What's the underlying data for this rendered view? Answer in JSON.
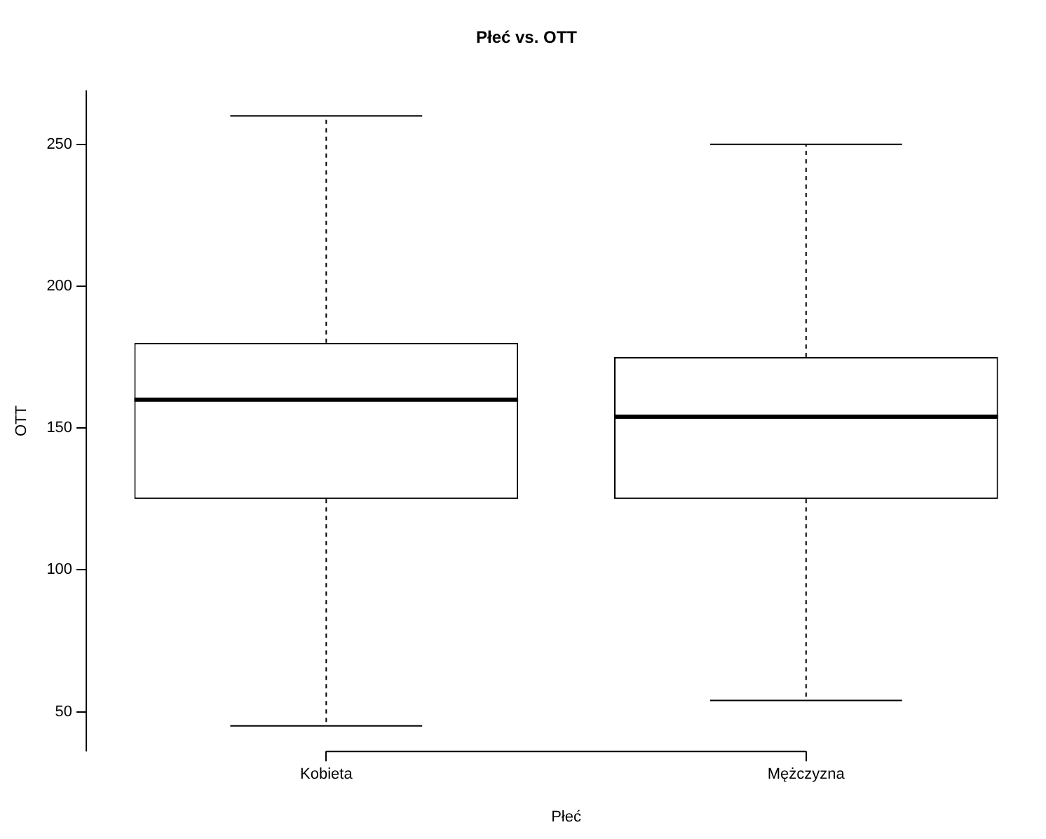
{
  "chart_data": {
    "type": "box",
    "title": "Płeć vs. OTT",
    "xlabel": "Płeć",
    "ylabel": "OTT",
    "categories": [
      "Kobieta",
      "Mężczyzna"
    ],
    "boxes": [
      {
        "low": 45,
        "q1": 125,
        "median": 160,
        "q3": 180,
        "high": 260
      },
      {
        "low": 54,
        "q1": 125,
        "median": 154,
        "q3": 175,
        "high": 250
      }
    ],
    "ylim": [
      36,
      269
    ],
    "yticks": [
      50,
      100,
      150,
      200,
      250
    ],
    "grid": false,
    "legend": false
  }
}
